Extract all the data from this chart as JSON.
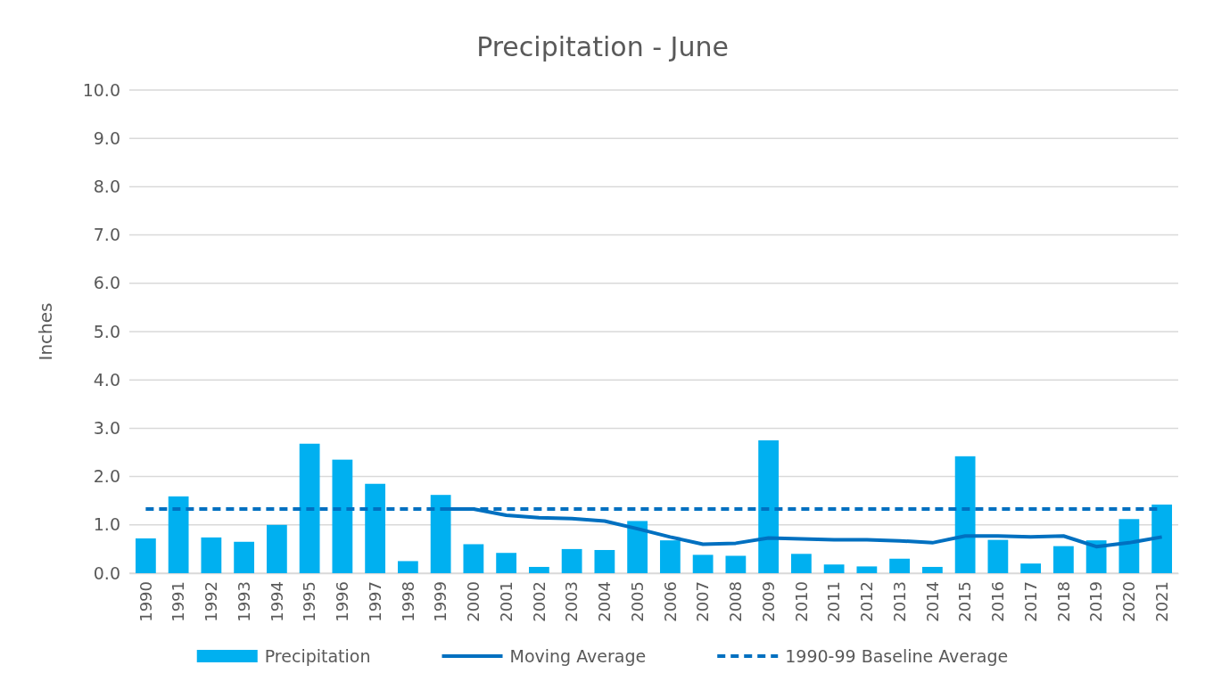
{
  "chart_data": {
    "type": "bar",
    "title": "Precipitation - June",
    "ylabel": "Inches",
    "categories": [
      "1990",
      "1991",
      "1992",
      "1993",
      "1994",
      "1995",
      "1996",
      "1997",
      "1998",
      "1999",
      "2000",
      "2001",
      "2002",
      "2003",
      "2004",
      "2005",
      "2006",
      "2007",
      "2008",
      "2009",
      "2010",
      "2011",
      "2012",
      "2013",
      "2014",
      "2015",
      "2016",
      "2017",
      "2018",
      "2019",
      "2020",
      "2021"
    ],
    "series": [
      {
        "name": "Precipitation",
        "color": "#00b0f0",
        "values": [
          0.72,
          1.59,
          0.74,
          0.65,
          1.0,
          2.68,
          2.35,
          1.85,
          0.25,
          1.62,
          0.6,
          0.42,
          0.13,
          0.5,
          0.48,
          1.08,
          0.68,
          0.38,
          0.36,
          2.75,
          0.4,
          0.18,
          0.14,
          0.3,
          0.13,
          2.42,
          0.69,
          0.2,
          0.56,
          0.68,
          1.12,
          1.42
        ]
      },
      {
        "name": "Moving Average",
        "type": "line",
        "color": "#0070c0",
        "line_style": "solid",
        "values": [
          null,
          null,
          null,
          null,
          null,
          null,
          null,
          null,
          null,
          1.33,
          1.33,
          1.2,
          1.15,
          1.13,
          1.08,
          0.92,
          0.75,
          0.6,
          0.62,
          0.73,
          0.71,
          0.69,
          0.69,
          0.67,
          0.63,
          0.77,
          0.77,
          0.75,
          0.77,
          0.55,
          0.63,
          0.75
        ]
      },
      {
        "name": "1990-99 Baseline Average",
        "type": "line",
        "color": "#0070c0",
        "line_style": "dashed",
        "values": [
          1.33,
          1.33,
          1.33,
          1.33,
          1.33,
          1.33,
          1.33,
          1.33,
          1.33,
          1.33,
          1.33,
          1.33,
          1.33,
          1.33,
          1.33,
          1.33,
          1.33,
          1.33,
          1.33,
          1.33,
          1.33,
          1.33,
          1.33,
          1.33,
          1.33,
          1.33,
          1.33,
          1.33,
          1.33,
          1.33,
          1.33,
          1.33
        ]
      }
    ],
    "ylim": [
      0,
      10
    ],
    "yticks": [
      {
        "value": 0,
        "label": "0.0"
      },
      {
        "value": 1,
        "label": "1.0"
      },
      {
        "value": 2,
        "label": "2.0"
      },
      {
        "value": 3,
        "label": "3.0"
      },
      {
        "value": 4,
        "label": "4.0"
      },
      {
        "value": 5,
        "label": "5.0"
      },
      {
        "value": 6,
        "label": "6.0"
      },
      {
        "value": 7,
        "label": "7.0"
      },
      {
        "value": 8,
        "label": "8.0"
      },
      {
        "value": 9,
        "label": "9.0"
      },
      {
        "value": 10,
        "label": "10.0"
      }
    ],
    "grid": "y",
    "legend": "bottom"
  }
}
